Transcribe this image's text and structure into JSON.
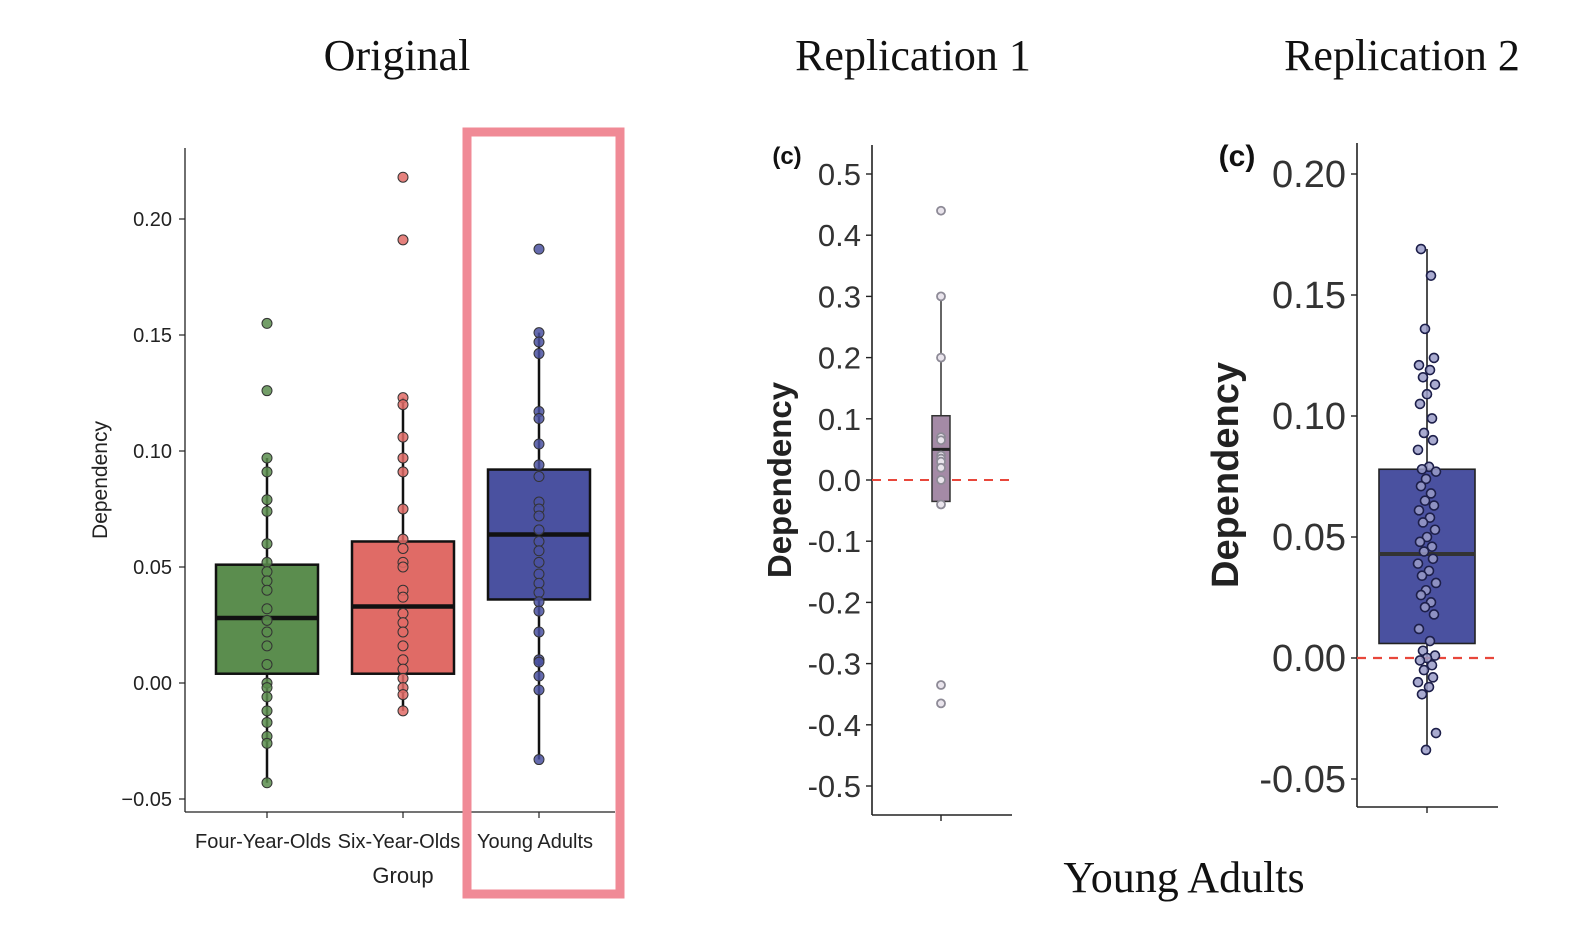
{
  "headings": {
    "original": "Original",
    "replication1": "Replication 1",
    "replication2": "Replication 2",
    "bottom_caption": "Young Adults"
  },
  "colors": {
    "four_year_olds": "#5b8d4e",
    "six_year_olds": "#e06b66",
    "young_adults": "#4a51a0",
    "replication1_box": "#a48aa6",
    "highlight": "#f08a96",
    "reference_line": "#e8473b"
  },
  "chart_data": [
    {
      "type": "box",
      "xlabel": "Group",
      "ylabel": "Dependency",
      "ylim": [
        -0.05,
        0.22
      ],
      "yticks": [
        -0.05,
        0.0,
        0.05,
        0.1,
        0.15,
        0.2
      ],
      "ytick_labels": [
        "−0.05",
        "0.00",
        "0.05",
        "0.10",
        "0.15",
        "0.20"
      ],
      "categories": [
        "Four-Year-Olds",
        "Six-Year-Olds",
        "Young Adults"
      ],
      "highlighted_category": "Young Adults",
      "series": [
        {
          "category": "Four-Year-Olds",
          "q1": 0.004,
          "median": 0.028,
          "q3": 0.051,
          "whisker_low": -0.043,
          "whisker_high": 0.097,
          "points": [
            0.155,
            0.126,
            0.097,
            0.091,
            0.079,
            0.074,
            0.06,
            0.052,
            0.048,
            0.044,
            0.04,
            0.032,
            0.027,
            0.022,
            0.016,
            0.008,
            0.0,
            -0.002,
            -0.006,
            -0.012,
            -0.017,
            -0.023,
            -0.026,
            -0.043
          ]
        },
        {
          "category": "Six-Year-Olds",
          "q1": 0.004,
          "median": 0.033,
          "q3": 0.061,
          "whisker_low": -0.012,
          "whisker_high": 0.123,
          "points": [
            0.218,
            0.191,
            0.123,
            0.12,
            0.106,
            0.097,
            0.091,
            0.075,
            0.062,
            0.058,
            0.052,
            0.05,
            0.04,
            0.037,
            0.03,
            0.026,
            0.022,
            0.016,
            0.01,
            0.006,
            0.002,
            -0.002,
            -0.005,
            -0.012
          ]
        },
        {
          "category": "Young Adults",
          "q1": 0.036,
          "median": 0.064,
          "q3": 0.092,
          "whisker_low": -0.033,
          "whisker_high": 0.151,
          "points": [
            0.187,
            0.151,
            0.147,
            0.142,
            0.117,
            0.114,
            0.103,
            0.094,
            0.089,
            0.078,
            0.075,
            0.072,
            0.066,
            0.061,
            0.057,
            0.052,
            0.047,
            0.043,
            0.039,
            0.035,
            0.031,
            0.022,
            0.01,
            0.009,
            0.003,
            -0.003,
            -0.033
          ]
        }
      ]
    },
    {
      "type": "box",
      "panel_label": "(c)",
      "ylabel": "Dependency",
      "ylim": [
        -0.5,
        0.5
      ],
      "yticks": [
        -0.5,
        -0.4,
        -0.3,
        -0.2,
        -0.1,
        0.0,
        0.1,
        0.2,
        0.3,
        0.4,
        0.5
      ],
      "ytick_labels": [
        "-0.5",
        "-0.4",
        "-0.3",
        "-0.2",
        "-0.1",
        "0.0",
        "0.1",
        "0.2",
        "0.3",
        "0.4",
        "0.5"
      ],
      "reference_line": 0.0,
      "series": [
        {
          "q1": -0.035,
          "median": 0.05,
          "q3": 0.105,
          "whisker_low": -0.04,
          "whisker_high": 0.3,
          "points": [
            0.44,
            0.3,
            0.2,
            0.07,
            0.065,
            0.04,
            0.035,
            0.03,
            0.02,
            0.0,
            -0.04,
            -0.335,
            -0.365
          ]
        }
      ]
    },
    {
      "type": "box",
      "panel_label": "(c)",
      "ylabel": "Dependency",
      "ylim": [
        -0.05,
        0.2
      ],
      "yticks": [
        -0.05,
        0.0,
        0.05,
        0.1,
        0.15,
        0.2
      ],
      "ytick_labels": [
        "-0.05",
        "0.00",
        "0.05",
        "0.10",
        "0.15",
        "0.20"
      ],
      "reference_line": 0.0,
      "series": [
        {
          "q1": 0.006,
          "median": 0.043,
          "q3": 0.078,
          "whisker_low": -0.038,
          "whisker_high": 0.169,
          "points": [
            0.169,
            0.158,
            0.136,
            0.124,
            0.121,
            0.119,
            0.116,
            0.113,
            0.109,
            0.105,
            0.099,
            0.093,
            0.09,
            0.086,
            0.079,
            0.078,
            0.077,
            0.074,
            0.071,
            0.068,
            0.065,
            0.063,
            0.061,
            0.058,
            0.056,
            0.053,
            0.05,
            0.048,
            0.046,
            0.044,
            0.041,
            0.039,
            0.036,
            0.034,
            0.031,
            0.028,
            0.026,
            0.023,
            0.021,
            0.018,
            0.012,
            0.007,
            0.003,
            0.001,
            0.0,
            -0.001,
            -0.003,
            -0.005,
            -0.008,
            -0.01,
            -0.012,
            -0.015,
            -0.031,
            -0.038
          ]
        }
      ]
    }
  ]
}
